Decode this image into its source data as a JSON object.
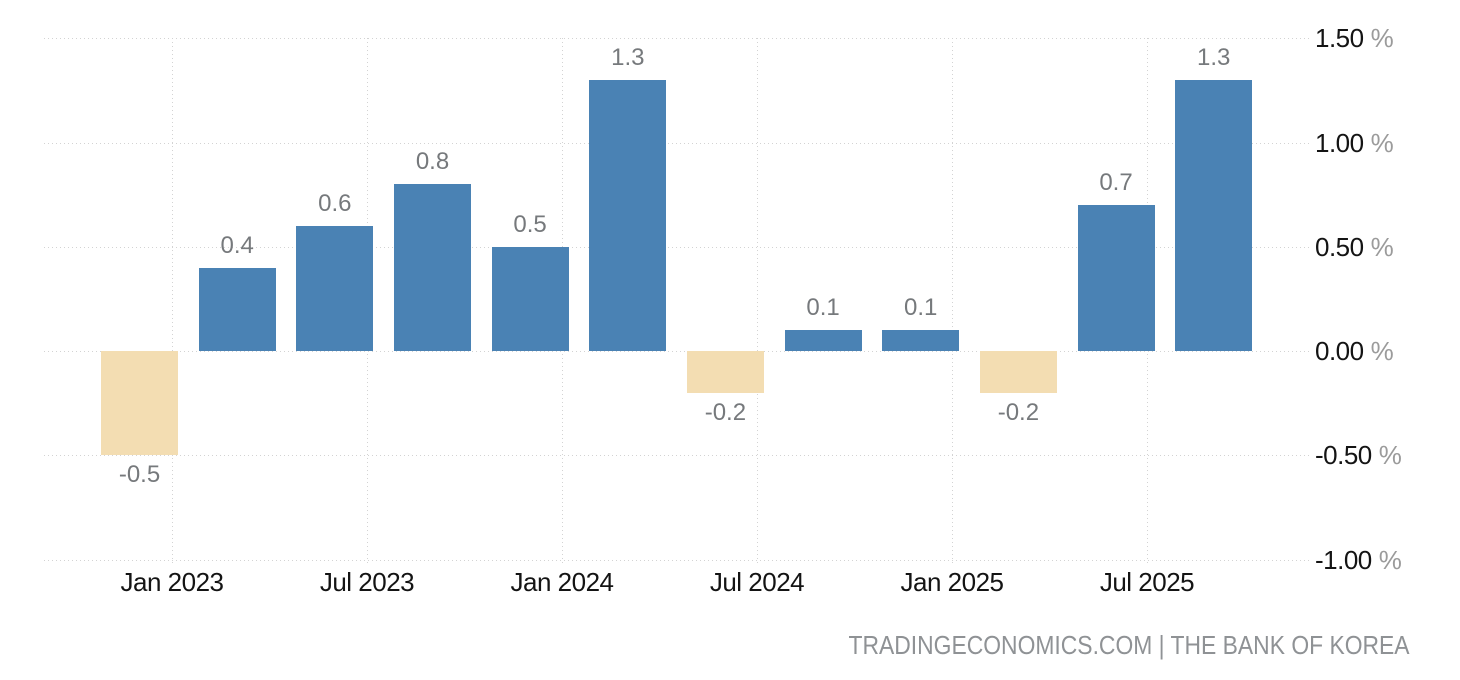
{
  "chart_data": {
    "type": "bar",
    "title": "",
    "grid": true,
    "legend": false,
    "ylim": [
      -1.1,
      1.6
    ],
    "y_axis_side": "right",
    "y_ticks": [
      {
        "value": 1.5,
        "label": "1.50",
        "suffix": "%"
      },
      {
        "value": 1.0,
        "label": "1.00",
        "suffix": "%"
      },
      {
        "value": 0.5,
        "label": "0.50",
        "suffix": "%"
      },
      {
        "value": 0.0,
        "label": "0.00",
        "suffix": "%"
      },
      {
        "value": -0.5,
        "label": "-0.50",
        "suffix": "%"
      },
      {
        "value": -1.0,
        "label": "-1.00",
        "suffix": "%"
      }
    ],
    "x_tick_labels": [
      "Jan 2023",
      "Jul 2023",
      "Jan 2024",
      "Jul 2024",
      "Jan 2025",
      "Jul 2025"
    ],
    "values": [
      -0.5,
      0.4,
      0.6,
      0.8,
      0.5,
      1.3,
      -0.2,
      0.1,
      0.1,
      -0.2,
      0.7,
      1.3
    ],
    "data_labels": [
      "-0.5",
      "0.4",
      "0.6",
      "0.8",
      "0.5",
      "1.3",
      "-0.2",
      "0.1",
      "0.1",
      "-0.2",
      "0.7",
      "1.3"
    ],
    "colors": {
      "bar_positive": "#4a82b4",
      "bar_negative": "#f3ddb2",
      "data_label": "#76797c",
      "axis_label": "#141414",
      "percent_sign": "#9b9b9b",
      "gridline": "#d3d3d3",
      "background": "#ffffff"
    }
  },
  "footer": {
    "attribution": "TRADINGECONOMICS.COM | THE BANK OF KOREA"
  }
}
